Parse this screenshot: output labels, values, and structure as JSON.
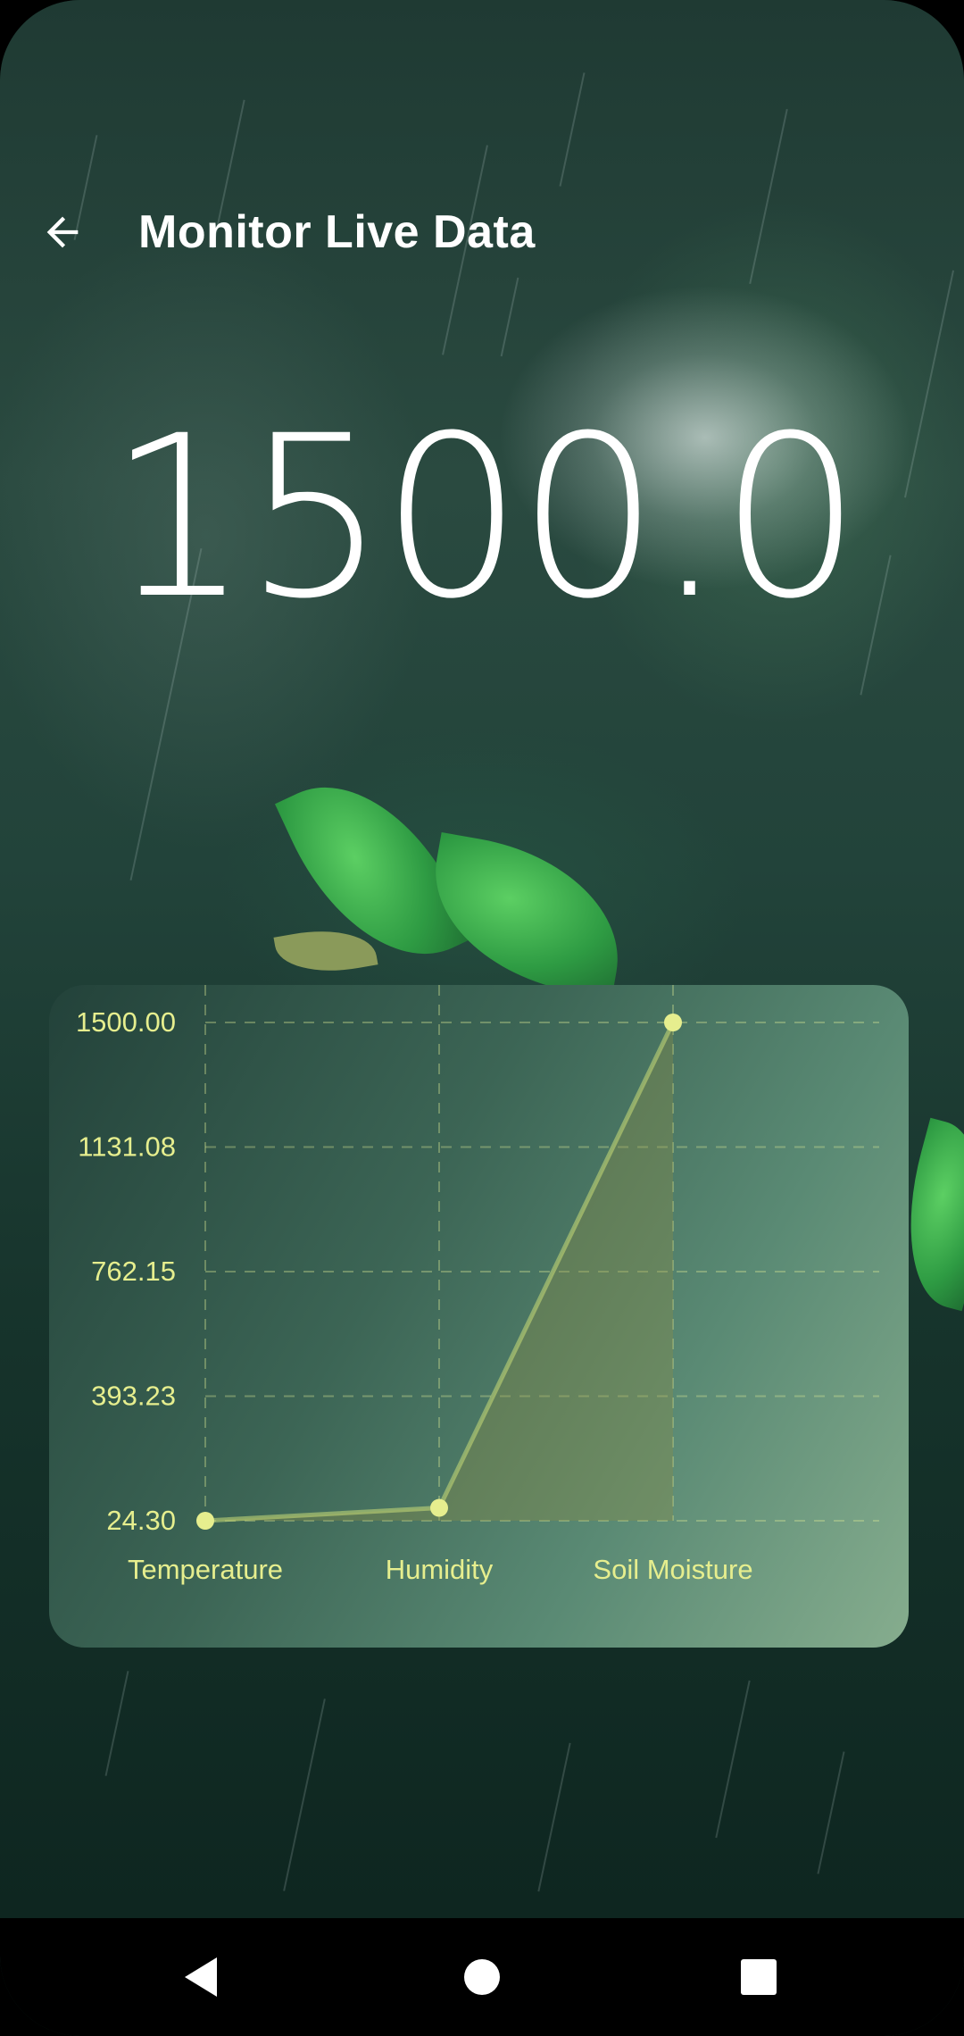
{
  "header": {
    "title": "Monitor Live Data"
  },
  "current_value": "1500.0",
  "icons": {
    "back": "arrow-left-icon",
    "nav_back": "triangle-back-icon",
    "nav_home": "circle-home-icon",
    "nav_recents": "square-recents-icon"
  },
  "colors": {
    "accent": "#e6ee8e",
    "card_start": "#23423a",
    "card_end": "#86ad8e"
  },
  "chart_data": {
    "type": "line",
    "categories": [
      "Temperature",
      "Humidity",
      "Soil Moisture"
    ],
    "values": [
      24.3,
      62.5,
      1500.0
    ],
    "y_ticks": [
      "24.30",
      "393.23",
      "762.15",
      "1131.08",
      "1500.00"
    ],
    "ylim": [
      24.3,
      1500.0
    ],
    "grid": true,
    "filled_area": true
  }
}
